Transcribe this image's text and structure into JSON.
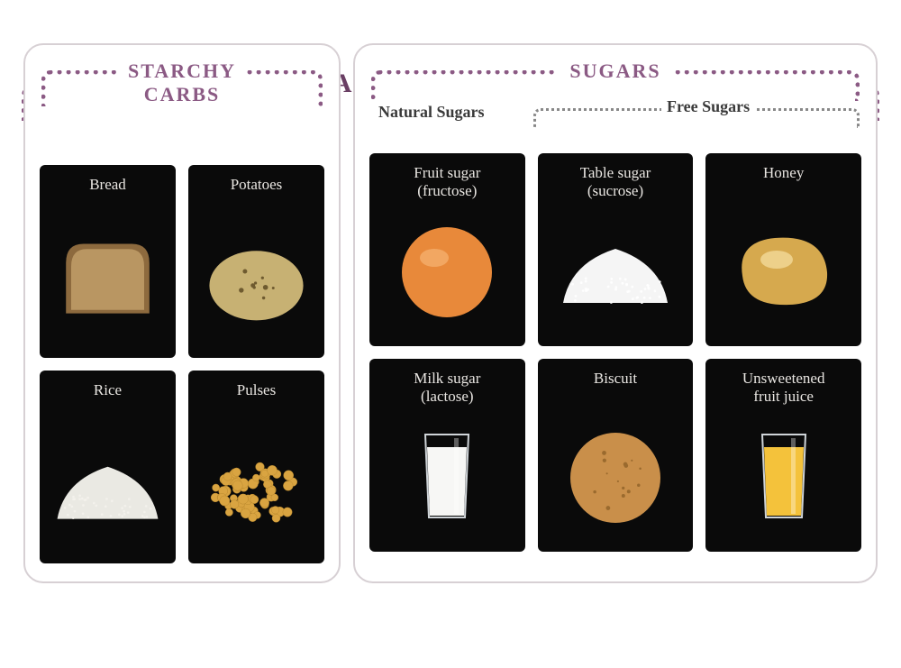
{
  "colors": {
    "accent": "#8b5a84",
    "accent_dark": "#6a3f64",
    "panel_border": "#d7d0d4",
    "card_bg": "#0a0a0a",
    "card_text": "#e9e6e2",
    "sub_dotted": "#888888",
    "sub_text": "#3a3a3a"
  },
  "title": "CARBOHYDRATES",
  "left_panel": {
    "title_line1": "STARCHY",
    "title_line2": "CARBS",
    "cards": [
      {
        "label": "Bread",
        "food": "bread"
      },
      {
        "label": "Potatoes",
        "food": "potato"
      },
      {
        "label": "Rice",
        "food": "rice"
      },
      {
        "label": "Pulses",
        "food": "pulses"
      }
    ]
  },
  "right_panel": {
    "title": "SUGARS",
    "natural_label": "Natural Sugars",
    "free_label": "Free Sugars",
    "cards": [
      {
        "label": "Fruit sugar\n(fructose)",
        "food": "orange"
      },
      {
        "label": "Table sugar\n(sucrose)",
        "food": "sugar"
      },
      {
        "label": "Honey",
        "food": "honey"
      },
      {
        "label": "Milk sugar\n(lactose)",
        "food": "milk"
      },
      {
        "label": "Biscuit",
        "food": "biscuit"
      },
      {
        "label": "Unsweetened\nfruit juice",
        "food": "juice"
      }
    ]
  },
  "food_art": {
    "bread": {
      "shape": "bread",
      "fill": "#b99662",
      "fill2": "#8d6a3e"
    },
    "potato": {
      "shape": "ellipse",
      "fill": "#c7b173",
      "spots": "#6e5a2f"
    },
    "rice": {
      "shape": "pile",
      "fill": "#f4f2ec"
    },
    "pulses": {
      "shape": "cluster",
      "fill": "#d9a441"
    },
    "orange": {
      "shape": "circle",
      "fill": "#e8893a",
      "shine": "#f7b473"
    },
    "sugar": {
      "shape": "pile",
      "fill": "#ffffff"
    },
    "honey": {
      "shape": "blob",
      "fill": "#d6a94e",
      "shine": "#f2d99a"
    },
    "milk": {
      "shape": "glass",
      "fill": "#f7f7f5"
    },
    "biscuit": {
      "shape": "circle",
      "fill": "#c98f4a",
      "spots": "#9a6a2e"
    },
    "juice": {
      "shape": "glass",
      "fill": "#f4c23b"
    }
  }
}
